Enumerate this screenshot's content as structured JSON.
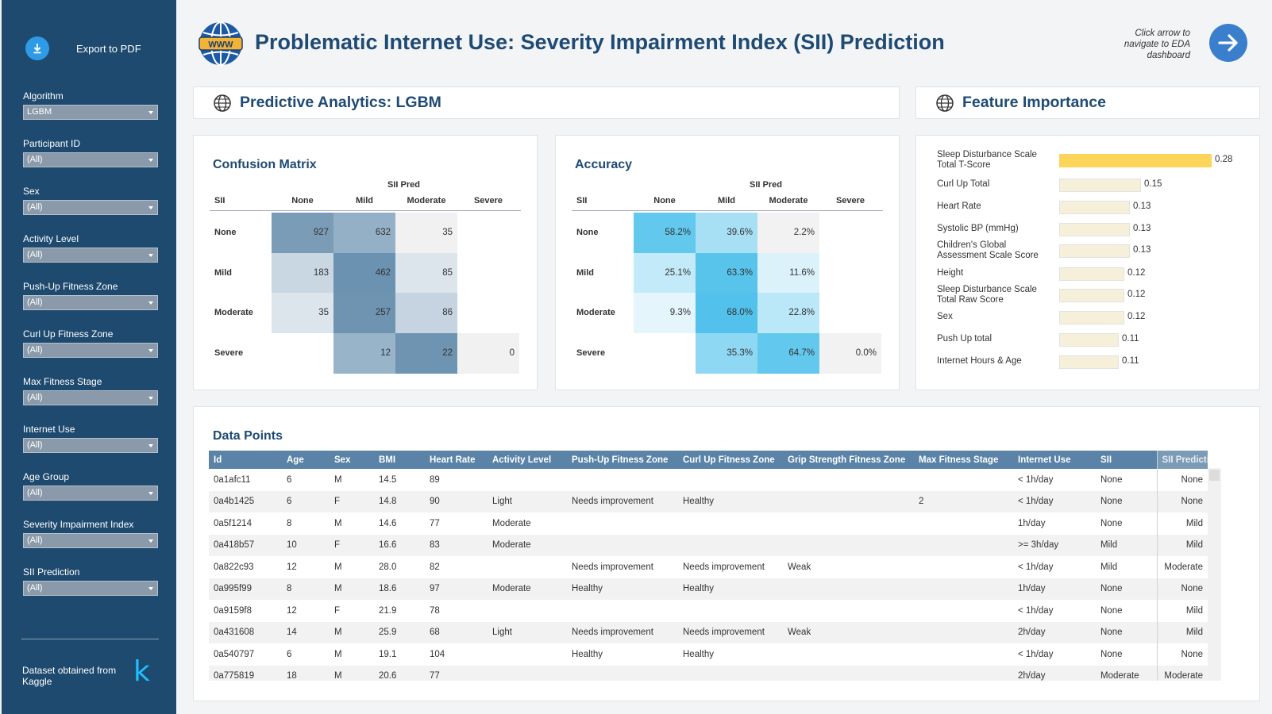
{
  "sidebar": {
    "export_label": "Export to PDF",
    "filters": [
      {
        "label": "Algorithm",
        "value": "LGBM"
      },
      {
        "label": "Participant ID",
        "value": "(All)"
      },
      {
        "label": "Sex",
        "value": "(All)"
      },
      {
        "label": "Activity Level",
        "value": "(All)"
      },
      {
        "label": "Push-Up Fitness Zone",
        "value": "(All)"
      },
      {
        "label": "Curl Up Fitness Zone",
        "value": "(All)"
      },
      {
        "label": "Max Fitness Stage",
        "value": "(All)"
      },
      {
        "label": "Internet Use",
        "value": "(All)"
      },
      {
        "label": "Age Group",
        "value": "(All)"
      },
      {
        "label": "Severity Impairment Index",
        "value": "(All)"
      },
      {
        "label": "SII Prediction",
        "value": "(All)"
      }
    ],
    "dataset_note": "Dataset obtained from Kaggle",
    "kaggle_logo": "k"
  },
  "header": {
    "logo_text": "WWW",
    "title": "Problematic Internet Use: Severity Impairment Index (SII) Prediction",
    "nav_hint": "Click arrow to navigate to EDA dashboard"
  },
  "sections": {
    "predictive": "Predictive Analytics: LGBM",
    "feature": "Feature Importance"
  },
  "colors": {
    "sidebar": "#1e4a6f",
    "title": "#1e4a74",
    "accent_blue": "#3a7fcc",
    "bar_top": "#fdd55b",
    "bar_other": "#f6f0da"
  },
  "confusion": {
    "title": "Confusion Matrix",
    "pred_label": "SII Pred",
    "row_header": "SII",
    "cols": [
      "None",
      "Mild",
      "Moderate",
      "Severe"
    ],
    "rows": [
      "None",
      "Mild",
      "Moderate",
      "Severe"
    ],
    "values": [
      [
        "927",
        "632",
        "35",
        ""
      ],
      [
        "183",
        "462",
        "85",
        ""
      ],
      [
        "35",
        "257",
        "86",
        ""
      ],
      [
        "",
        "12",
        "22",
        "0"
      ]
    ],
    "colors": [
      [
        "#7b9cb6",
        "#93b0c7",
        "#f1f1f1",
        "#ffffff"
      ],
      [
        "#c9d7e2",
        "#6b92b0",
        "#dde5ec",
        "#ffffff"
      ],
      [
        "#dde5ec",
        "#6e94b1",
        "#c5d4e0",
        "#ffffff"
      ],
      [
        "#ffffff",
        "#98b4c9",
        "#6e94b1",
        "#f1f1f1"
      ]
    ]
  },
  "accuracy": {
    "title": "Accuracy",
    "pred_label": "SII Pred",
    "row_header": "SII",
    "cols": [
      "None",
      "Mild",
      "Moderate",
      "Severe"
    ],
    "rows": [
      "None",
      "Mild",
      "Moderate",
      "Severe"
    ],
    "values": [
      [
        "58.2%",
        "39.6%",
        "2.2%",
        ""
      ],
      [
        "25.1%",
        "63.3%",
        "11.6%",
        ""
      ],
      [
        "9.3%",
        "68.0%",
        "22.8%",
        ""
      ],
      [
        "",
        "35.3%",
        "64.7%",
        "0.0%"
      ]
    ],
    "colors": [
      [
        "#62c8ee",
        "#a7e0f5",
        "#f2f2f2",
        "#ffffff"
      ],
      [
        "#c3eaf8",
        "#58c4ec",
        "#dbf2fb",
        "#ffffff"
      ],
      [
        "#e4f5fc",
        "#52c1eb",
        "#bbe8f8",
        "#ffffff"
      ],
      [
        "#ffffff",
        "#8fd8f3",
        "#62c8ee",
        "#f2f2f2"
      ]
    ]
  },
  "feature_importance": [
    {
      "label": "Sleep Disturbance Scale Total T-Score",
      "value": 0.28
    },
    {
      "label": "Curl Up Total",
      "value": 0.15
    },
    {
      "label": "Heart Rate",
      "value": 0.13
    },
    {
      "label": "Systolic BP (mmHg)",
      "value": 0.13
    },
    {
      "label": "Children's Global Assessment Scale Score",
      "value": 0.13
    },
    {
      "label": "Height",
      "value": 0.12
    },
    {
      "label": "Sleep Disturbance Scale Total Raw Score",
      "value": 0.12
    },
    {
      "label": "Sex",
      "value": 0.12
    },
    {
      "label": "Push Up total",
      "value": 0.11
    },
    {
      "label": "Internet Hours & Age",
      "value": 0.11
    }
  ],
  "data_points": {
    "title": "Data Points",
    "columns": [
      "Id",
      "Age",
      "Sex",
      "BMI",
      "Heart Rate",
      "Activity Level",
      "Push-Up Fitness Zone",
      "Curl Up Fitness Zone",
      "Grip Strength Fitness Zone",
      "Max Fitness Stage",
      "Internet Use",
      "SII",
      "SII Prediction"
    ],
    "rows": [
      [
        "0a1afc11",
        "6",
        "M",
        "14.5",
        "89",
        "",
        "",
        "",
        "",
        "",
        "< 1h/day",
        "None",
        "None"
      ],
      [
        "0a4b1425",
        "6",
        "F",
        "14.8",
        "90",
        "Light",
        "Needs improvement",
        "Healthy",
        "",
        "2",
        "< 1h/day",
        "None",
        "None"
      ],
      [
        "0a5f1214",
        "8",
        "M",
        "14.6",
        "77",
        "Moderate",
        "",
        "",
        "",
        "",
        "1h/day",
        "None",
        "Mild"
      ],
      [
        "0a418b57",
        "10",
        "F",
        "16.6",
        "83",
        "Moderate",
        "",
        "",
        "",
        "",
        ">= 3h/day",
        "Mild",
        "Mild"
      ],
      [
        "0a822c93",
        "12",
        "M",
        "28.0",
        "82",
        "",
        "Needs improvement",
        "Needs improvement",
        "Weak",
        "",
        "< 1h/day",
        "Mild",
        "Moderate"
      ],
      [
        "0a995f99",
        "8",
        "M",
        "18.6",
        "97",
        "Moderate",
        "Healthy",
        "Healthy",
        "",
        "",
        "1h/day",
        "None",
        "None"
      ],
      [
        "0a9159f8",
        "12",
        "F",
        "21.9",
        "78",
        "",
        "",
        "",
        "",
        "",
        "< 1h/day",
        "None",
        "Mild"
      ],
      [
        "0a431608",
        "14",
        "M",
        "25.9",
        "68",
        "Light",
        "Needs improvement",
        "Needs improvement",
        "Weak",
        "",
        "2h/day",
        "None",
        "Mild"
      ],
      [
        "0a540797",
        "6",
        "M",
        "19.1",
        "104",
        "",
        "Healthy",
        "Healthy",
        "",
        "",
        "< 1h/day",
        "None",
        "None"
      ],
      [
        "0a775819",
        "18",
        "M",
        "20.6",
        "77",
        "",
        "",
        "",
        "",
        "",
        "2h/day",
        "Moderate",
        "Moderate"
      ]
    ]
  }
}
